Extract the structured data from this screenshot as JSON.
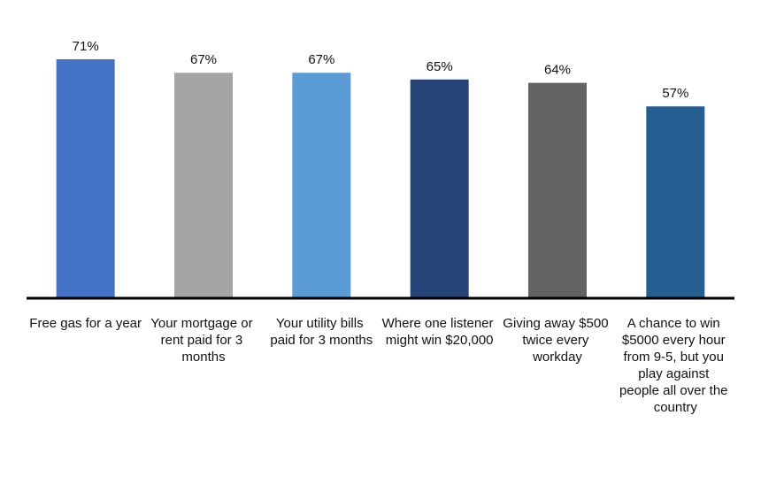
{
  "chart_data": {
    "type": "bar",
    "categories": [
      "Free gas for a year",
      "Your mortgage or rent paid for 3 months",
      "Your utility bills paid for 3 months",
      "Where one listener might win $20,000",
      "Giving away $500 twice every workday",
      "A chance to win $5000 every hour from 9-5, but you play against people all over the country"
    ],
    "values": [
      71,
      67,
      67,
      65,
      64,
      57
    ],
    "value_labels": [
      "71%",
      "67%",
      "67%",
      "65%",
      "64%",
      "57%"
    ],
    "colors": [
      "#4472c4",
      "#a5a5a5",
      "#5b9bd5",
      "#264478",
      "#636363",
      "#255e91"
    ]
  }
}
